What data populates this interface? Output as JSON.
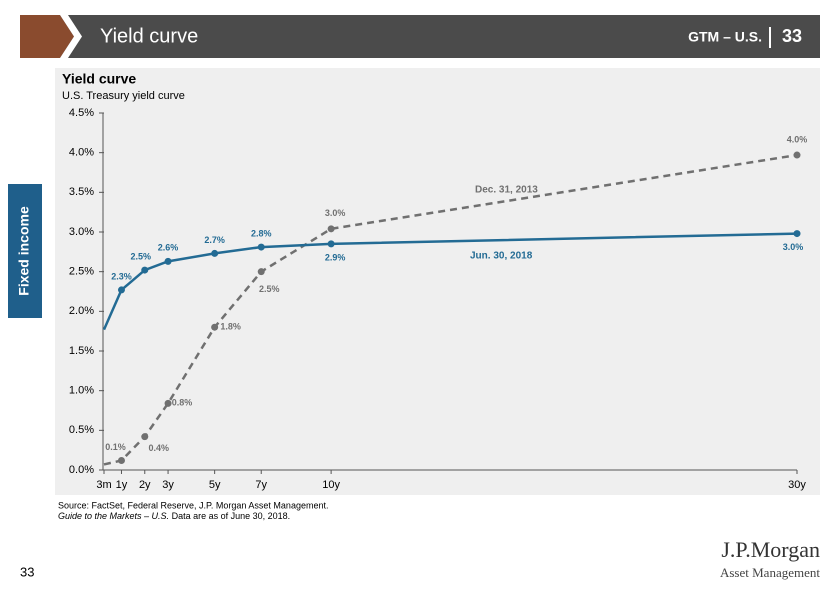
{
  "header": {
    "title": "Yield curve",
    "source_tag": "GTM – U.S.",
    "page": "33"
  },
  "side_tab": "Fixed income",
  "chart_data": {
    "type": "line",
    "title": "Yield curve",
    "subtitle": "U.S. Treasury yield curve",
    "x": [
      0.25,
      1,
      2,
      3,
      5,
      7,
      10,
      30
    ],
    "xlim": [
      0.25,
      30
    ],
    "xticks": [
      {
        "value": 0.25,
        "label": "3m"
      },
      {
        "value": 1,
        "label": "1y"
      },
      {
        "value": 2,
        "label": "2y"
      },
      {
        "value": 3,
        "label": "3y"
      },
      {
        "value": 5,
        "label": "5y"
      },
      {
        "value": 7,
        "label": "7y"
      },
      {
        "value": 10,
        "label": "10y"
      },
      {
        "value": 30,
        "label": "30y"
      }
    ],
    "ylim": [
      0,
      4.5
    ],
    "yticks": [
      {
        "value": 0,
        "label": "0.0%"
      },
      {
        "value": 0.5,
        "label": "0.5%"
      },
      {
        "value": 1,
        "label": "1.0%"
      },
      {
        "value": 1.5,
        "label": "1.5%"
      },
      {
        "value": 2,
        "label": "2.0%"
      },
      {
        "value": 2.5,
        "label": "2.5%"
      },
      {
        "value": 3,
        "label": "3.0%"
      },
      {
        "value": 3.5,
        "label": "3.5%"
      },
      {
        "value": 4,
        "label": "4.0%"
      },
      {
        "value": 4.5,
        "label": "4.5%"
      }
    ],
    "series": [
      {
        "name": "Dec. 31, 2013",
        "color": "#707070",
        "dashed": true,
        "values": [
          0.07,
          0.12,
          0.42,
          0.84,
          1.8,
          2.5,
          3.04,
          3.97
        ],
        "value_labels": [
          null,
          "0.1%",
          "0.4%",
          "0.8%",
          "1.8%",
          "2.5%",
          "3.0%",
          "4.0%"
        ]
      },
      {
        "name": "Jun. 30, 2018",
        "color": "#236b94",
        "dashed": false,
        "values": [
          1.77,
          2.27,
          2.52,
          2.63,
          2.73,
          2.81,
          2.85,
          2.98
        ],
        "value_labels": [
          null,
          "2.3%",
          "2.5%",
          "2.6%",
          "2.7%",
          "2.8%",
          "2.9%",
          "3.0%"
        ]
      }
    ]
  },
  "footer": {
    "source": "Source: FactSet, Federal Reserve, J.P. Morgan Asset Management.",
    "note_italic": "Guide to the Markets – U.S.",
    "note": " Data are as of June 30, 2018.",
    "page": "33",
    "logo": "J.P.Morgan",
    "logo_sub": "Asset Management"
  }
}
